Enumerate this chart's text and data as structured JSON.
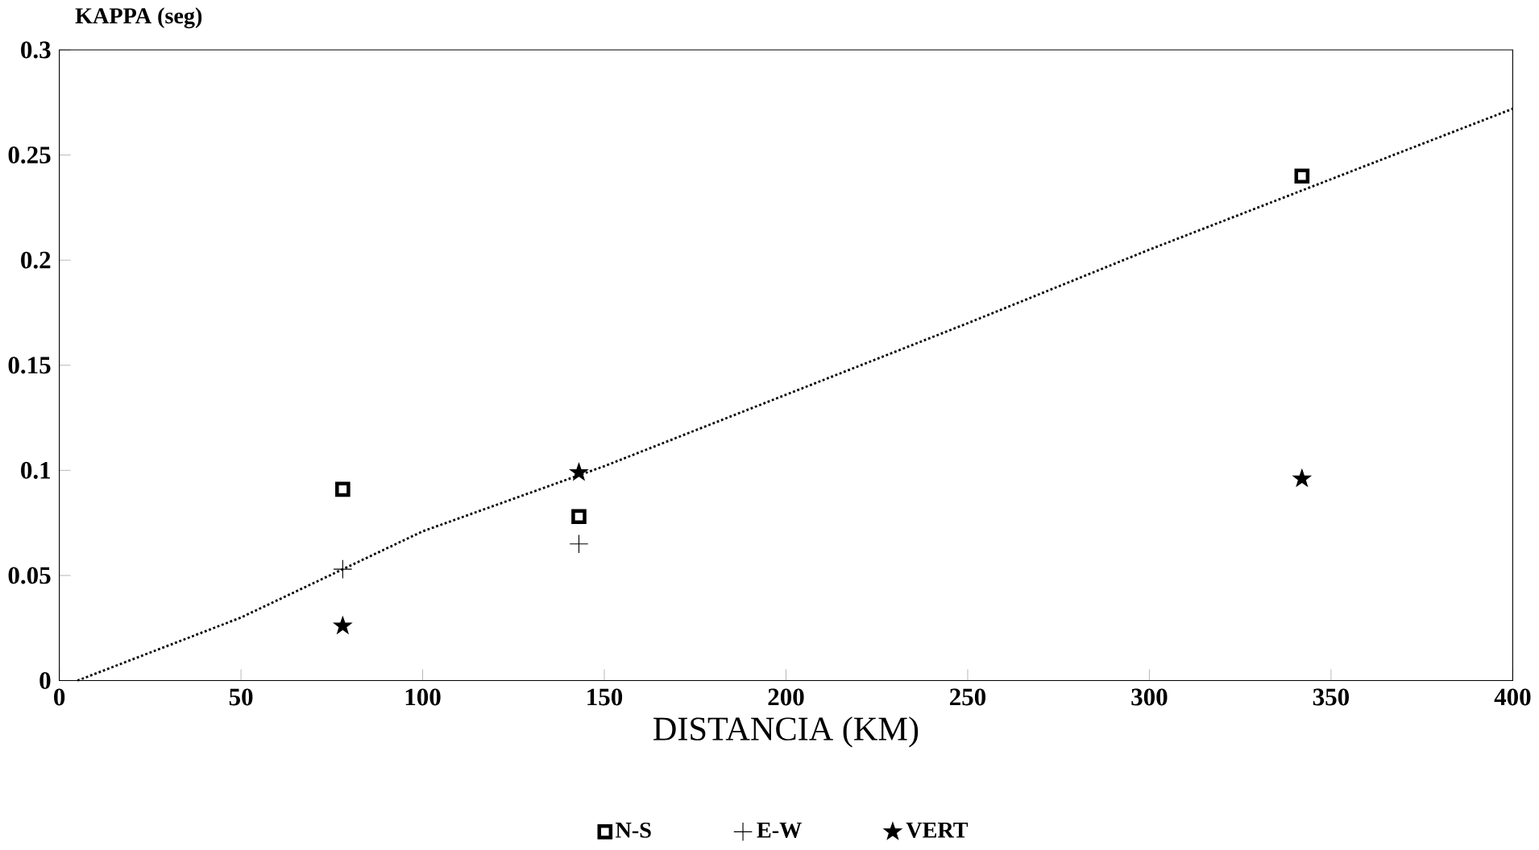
{
  "chart_data": {
    "type": "scatter",
    "xlabel": "DISTANCIA (KM)",
    "ylabel": "KAPPA (seg)",
    "xlim": [
      0,
      400
    ],
    "xticks": [
      0,
      50,
      100,
      150,
      200,
      250,
      300,
      350,
      400
    ],
    "ylim": [
      0,
      0.3
    ],
    "yticks": [
      0,
      0.05,
      0.1,
      0.15,
      0.2,
      0.25,
      0.3
    ],
    "legend": "bottom",
    "grid": false,
    "series": [
      {
        "name": "N-S",
        "color": "#000000",
        "marker": "square",
        "x": [
          78,
          143,
          342
        ],
        "values": [
          0.091,
          0.078,
          0.24
        ]
      },
      {
        "name": "E-W",
        "color": "#000000",
        "marker": "cross",
        "x": [
          78,
          143
        ],
        "values": [
          0.053,
          0.065
        ]
      },
      {
        "name": "VERT",
        "color": "#000000",
        "marker": "star",
        "x": [
          78,
          143,
          342
        ],
        "values": [
          0.026,
          0.099,
          0.096
        ]
      },
      {
        "type": "line",
        "color": "#000000",
        "marker": "none",
        "line_style": "dotted",
        "x": [
          5,
          50,
          100,
          150,
          250,
          300,
          400
        ],
        "values": [
          0,
          0.03,
          0.071,
          0.102,
          0.17,
          0.205,
          0.272
        ]
      }
    ]
  }
}
